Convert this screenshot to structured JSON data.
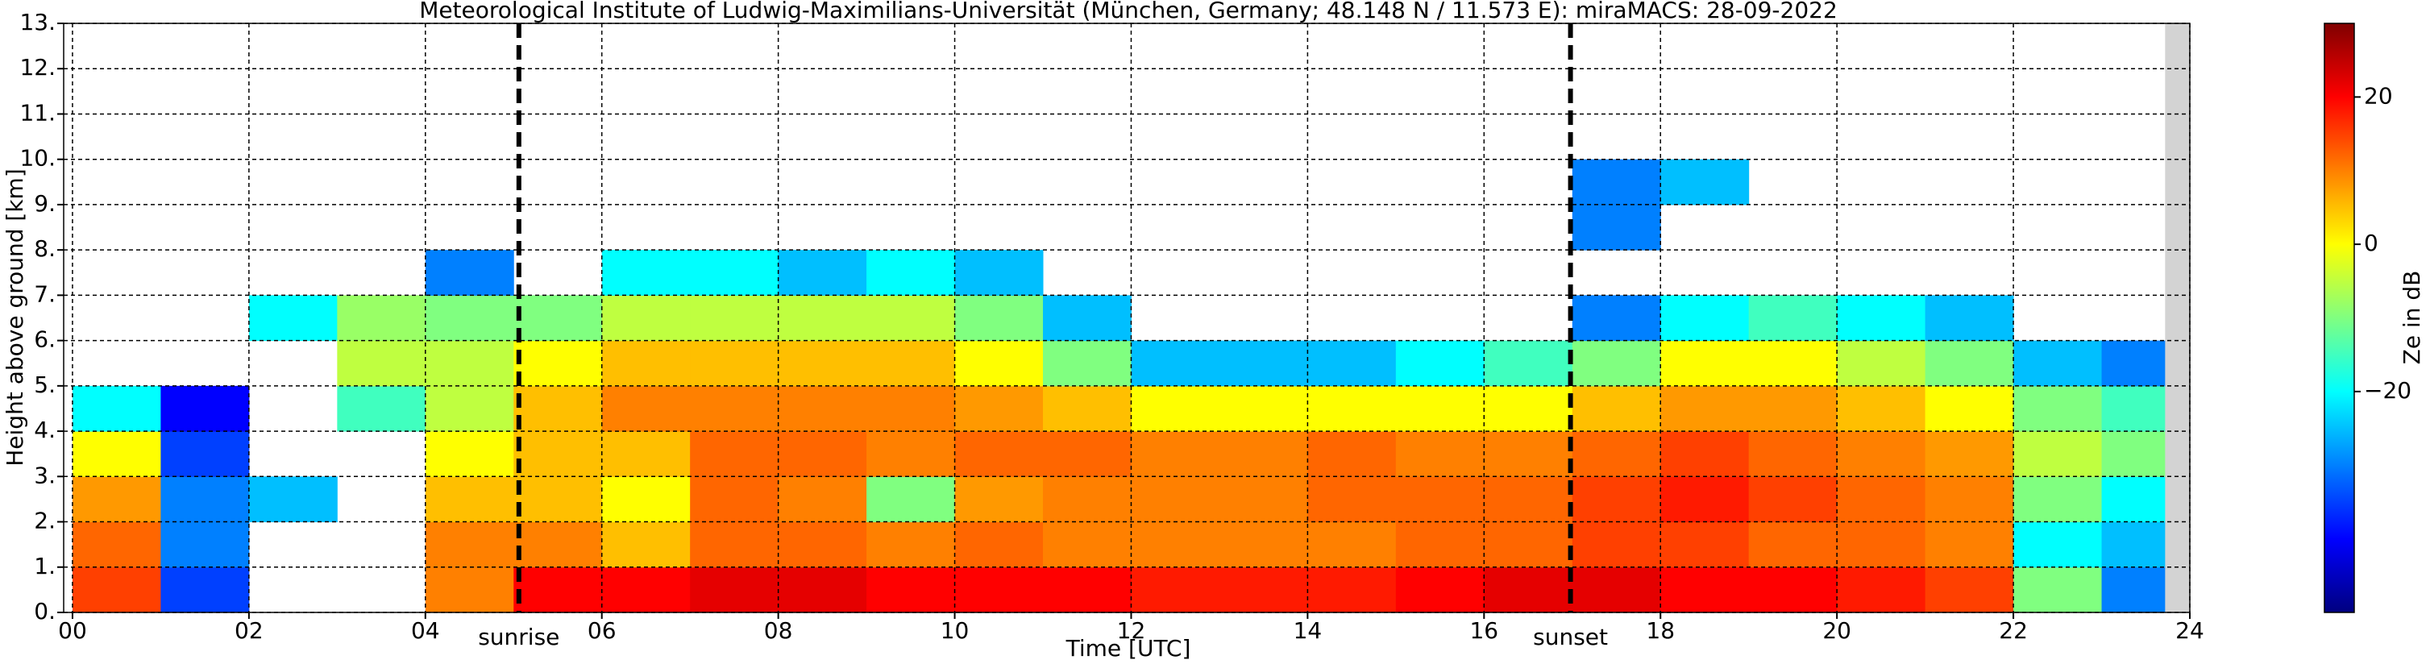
{
  "chart_data": {
    "type": "heatmap",
    "title": "Meteorological Institute of Ludwig-Maximilians-Universität (München, Germany; 48.148 N / 11.573 E):    miraMACS: 28-09-2022",
    "xlabel": "Time [UTC]",
    "ylabel": "Height above ground [km]",
    "colorbar_label": "Ze in dB",
    "colormap": "jet",
    "grid": true,
    "x": [
      0.5,
      1.5,
      2.5,
      3.5,
      4.5,
      5.5,
      6.5,
      7.5,
      8.5,
      9.5,
      10.5,
      11.5,
      12.5,
      13.5,
      14.5,
      15.5,
      16.5,
      17.5,
      18.5,
      19.5,
      20.5,
      21.5,
      22.5,
      23.5
    ],
    "y": [
      0.5,
      1.5,
      2.5,
      3.5,
      4.5,
      5.5,
      6.5,
      7.5,
      8.5,
      9.5,
      10.5,
      11.5,
      12.5
    ],
    "z": [
      [
        15,
        12,
        8,
        0,
        -20,
        null,
        null,
        null,
        null,
        null,
        null,
        null,
        null
      ],
      [
        -35,
        -30,
        -30,
        -35,
        -40,
        null,
        null,
        null,
        null,
        null,
        null,
        null,
        null
      ],
      [
        null,
        null,
        -25,
        null,
        null,
        null,
        -20,
        null,
        null,
        null,
        null,
        null,
        null
      ],
      [
        null,
        null,
        null,
        null,
        -15,
        -5,
        -8,
        null,
        null,
        null,
        null,
        null,
        null
      ],
      [
        10,
        10,
        5,
        0,
        -5,
        -5,
        -10,
        -30,
        null,
        null,
        null,
        null,
        null
      ],
      [
        20,
        10,
        5,
        5,
        5,
        0,
        -10,
        null,
        null,
        null,
        null,
        null,
        null
      ],
      [
        20,
        5,
        0,
        5,
        10,
        5,
        -5,
        -20,
        null,
        null,
        null,
        null,
        null
      ],
      [
        22,
        12,
        12,
        12,
        10,
        5,
        -5,
        -20,
        null,
        null,
        null,
        null,
        null
      ],
      [
        22,
        12,
        10,
        12,
        10,
        5,
        -5,
        -25,
        null,
        null,
        null,
        null,
        null
      ],
      [
        20,
        10,
        -10,
        10,
        10,
        5,
        -5,
        -20,
        null,
        null,
        null,
        null,
        null
      ],
      [
        20,
        12,
        8,
        12,
        8,
        0,
        -10,
        -25,
        null,
        null,
        null,
        null,
        null
      ],
      [
        20,
        10,
        10,
        12,
        5,
        -10,
        -25,
        null,
        null,
        null,
        null,
        null,
        null
      ],
      [
        18,
        10,
        10,
        10,
        0,
        -25,
        null,
        null,
        null,
        null,
        null,
        null,
        null
      ],
      [
        18,
        10,
        10,
        10,
        0,
        -25,
        null,
        null,
        null,
        null,
        null,
        null,
        null
      ],
      [
        18,
        10,
        12,
        12,
        0,
        -25,
        null,
        null,
        null,
        null,
        null,
        null,
        null
      ],
      [
        20,
        12,
        12,
        10,
        0,
        -20,
        null,
        null,
        null,
        null,
        null,
        null,
        null
      ],
      [
        22,
        12,
        12,
        10,
        0,
        -15,
        null,
        null,
        null,
        null,
        null,
        null,
        null
      ],
      [
        22,
        15,
        15,
        12,
        5,
        -10,
        -30,
        null,
        -30,
        -30,
        null,
        null,
        null
      ],
      [
        20,
        15,
        18,
        15,
        8,
        0,
        -20,
        null,
        null,
        -25,
        null,
        null,
        null
      ],
      [
        20,
        12,
        15,
        12,
        8,
        0,
        -15,
        null,
        null,
        null,
        null,
        null,
        null
      ],
      [
        18,
        12,
        12,
        10,
        5,
        -5,
        -20,
        null,
        null,
        null,
        null,
        null,
        null
      ],
      [
        15,
        10,
        10,
        8,
        0,
        -10,
        -25,
        null,
        null,
        null,
        null,
        null,
        null
      ],
      [
        -10,
        -20,
        -10,
        -5,
        -10,
        -25,
        null,
        null,
        null,
        null,
        null,
        null,
        null
      ],
      [
        -30,
        -25,
        -20,
        -10,
        -15,
        -30,
        null,
        null,
        null,
        null,
        null,
        null,
        null
      ]
    ],
    "nodata_x": [
      23.72,
      24
    ],
    "xlim": [
      -0.1,
      24
    ],
    "xticks": [
      {
        "value": 0,
        "label": "00"
      },
      {
        "value": 2,
        "label": "02"
      },
      {
        "value": 4,
        "label": "04"
      },
      {
        "value": 6,
        "label": "06"
      },
      {
        "value": 8,
        "label": "08"
      },
      {
        "value": 10,
        "label": "10"
      },
      {
        "value": 12,
        "label": "12"
      },
      {
        "value": 14,
        "label": "14"
      },
      {
        "value": 16,
        "label": "16"
      },
      {
        "value": 18,
        "label": "18"
      },
      {
        "value": 20,
        "label": "20"
      },
      {
        "value": 22,
        "label": "22"
      },
      {
        "value": 24,
        "label": "24"
      }
    ],
    "ylim": [
      0,
      13
    ],
    "yticks": [
      {
        "value": 0,
        "label": "0."
      },
      {
        "value": 1,
        "label": "1."
      },
      {
        "value": 2,
        "label": "2."
      },
      {
        "value": 3,
        "label": "3."
      },
      {
        "value": 4,
        "label": "4."
      },
      {
        "value": 5,
        "label": "5."
      },
      {
        "value": 6,
        "label": "6."
      },
      {
        "value": 7,
        "label": "7."
      },
      {
        "value": 8,
        "label": "8."
      },
      {
        "value": 9,
        "label": "9."
      },
      {
        "value": 10,
        "label": "10."
      },
      {
        "value": 11,
        "label": "11."
      },
      {
        "value": 12,
        "label": "12."
      },
      {
        "value": 13,
        "label": "13."
      }
    ],
    "clim": [
      -50,
      30
    ],
    "cticks": [
      {
        "value": -20,
        "label": "−20"
      },
      0,
      20
    ],
    "annotations": [
      {
        "text": "sunrise",
        "x": 5.06
      },
      {
        "text": "sunset",
        "x": 16.98
      }
    ]
  }
}
